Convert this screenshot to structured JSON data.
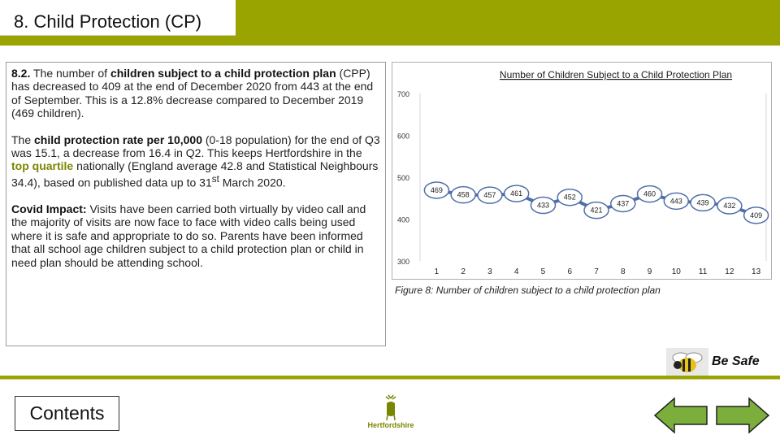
{
  "header": {
    "title": "8. Child Protection (CP)"
  },
  "text": {
    "p1_prefix": "8.2.",
    "p1_a": " The number of ",
    "p1_bold": "children subject to a child protection plan",
    "p1_b": " (CPP) has decreased to 409 at the end of December 2020 from 443 at the end of September. This is a 12.8% decrease compared to December 2019 (469 children).",
    "p2_a": "The ",
    "p2_bold": "child protection rate per 10,000",
    "p2_b": " (0-18 population) for the end of Q3 was 15.1, a decrease from 16.4 in Q2. This keeps Hertfordshire in the ",
    "p2_olive": "top quartile",
    "p2_c": " nationally (England average 42.8 and Statistical Neighbours 34.4), based on published data up to 31",
    "p2_sup": "st",
    "p2_d": "  March 2020.",
    "p3_bold": "Covid Impact:",
    "p3_a": " Visits have been carried both virtually by video call and the majority of visits are now face to face with video calls being used where it is safe and appropriate to do so. Parents have been informed that all school age children subject to a child protection plan or child in need plan should be attending school."
  },
  "chart_data": {
    "type": "line",
    "title": "Number of Children Subject to a Child Protection Plan",
    "x": [
      "1",
      "2",
      "3",
      "4",
      "5",
      "6",
      "7",
      "8",
      "9",
      "10",
      "11",
      "12",
      "13"
    ],
    "values": [
      469,
      458,
      457,
      461,
      433,
      452,
      421,
      437,
      460,
      443,
      439,
      432,
      409
    ],
    "yticks": [
      "700",
      "600",
      "500",
      "400",
      "300"
    ],
    "ylim": [
      300,
      700
    ],
    "line_color": "#4f6fa8",
    "grid": false
  },
  "caption": "Figure 8: Number of children subject to a child protection plan",
  "besafe": {
    "label": "Be Safe"
  },
  "contents_button": "Contents",
  "logo_text": "Hertfordshire",
  "colors": {
    "accent": "#99a400",
    "arrow": "#7cae3c"
  }
}
